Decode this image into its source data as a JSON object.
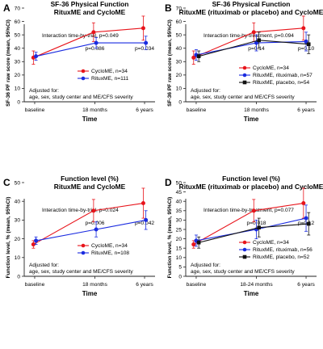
{
  "chart_data": [
    {
      "label": "A",
      "type": "line",
      "title": "SF-36 Physical Function",
      "subtitle": "RituxME and CycloME",
      "ylabel": "SF-36 PF raw score (mean, 95%CI)",
      "xlabel": "Time",
      "categories": [
        "baseline",
        "18 months",
        "6 years"
      ],
      "ylim": [
        0,
        70
      ],
      "yticks": [
        0,
        10,
        20,
        30,
        40,
        50,
        60,
        70
      ],
      "interaction": "Interaction time-by-trial, p=0.049",
      "pvalues": [
        "",
        "p=0.086",
        "p=0.034"
      ],
      "adjusted": [
        "Adjusted for:",
        "age, sex, study center and ME/CFS severity"
      ],
      "series": [
        {
          "name": "CycloME, n=34",
          "color": "#e8141b",
          "marker": "circle",
          "values": [
            33,
            52,
            55
          ],
          "lo": [
            28,
            45,
            46
          ],
          "hi": [
            38,
            59,
            64
          ]
        },
        {
          "name": "RituxME, n=111",
          "color": "#1a2be0",
          "marker": "circle",
          "values": [
            34,
            44,
            44
          ],
          "lo": [
            31,
            40,
            39
          ],
          "hi": [
            37,
            48,
            49
          ]
        }
      ]
    },
    {
      "label": "B",
      "type": "line",
      "title": "SF-36 Physical Function",
      "subtitle": "RituxME (rituximab or placebo) and CycloME",
      "ylabel": "SF-36 PF raw score (mean, 95%CI)",
      "xlabel": "Time",
      "categories": [
        "baseline",
        "18 months",
        "6 years"
      ],
      "ylim": [
        0,
        70
      ],
      "yticks": [
        0,
        10,
        20,
        30,
        40,
        50,
        60,
        70
      ],
      "interaction": "Interaction time-by-treatment, p=0.094",
      "pvalues": [
        "",
        "p=0.14",
        "p=0.10"
      ],
      "adjusted": [
        "Adjusted for:",
        "age, sex, study center and ME/CFS severity"
      ],
      "series": [
        {
          "name": "CycloME, n=34",
          "color": "#e8141b",
          "marker": "circle",
          "values": [
            33,
            52,
            55
          ],
          "lo": [
            28,
            45,
            46
          ],
          "hi": [
            38,
            59,
            64
          ]
        },
        {
          "name": "RituxME, rituximab, n=57",
          "color": "#1a2be0",
          "marker": "circle",
          "values": [
            35,
            44,
            45
          ],
          "lo": [
            31,
            38,
            38
          ],
          "hi": [
            39,
            50,
            52
          ]
        },
        {
          "name": "RituxME, placebo, n=54",
          "color": "#111111",
          "marker": "square",
          "values": [
            34,
            46,
            43
          ],
          "lo": [
            30,
            40,
            36
          ],
          "hi": [
            38,
            52,
            50
          ]
        }
      ]
    },
    {
      "label": "C",
      "type": "line",
      "title": "Function level (%)",
      "subtitle": "RituxME and CycloME",
      "ylabel": "Function level, % (mean, 95%CI)",
      "xlabel": "Time",
      "categories": [
        "baseline",
        "18 months",
        "6 years"
      ],
      "ylim": [
        0,
        50
      ],
      "yticks": [
        0,
        10,
        20,
        30,
        40,
        50
      ],
      "interaction": "Interaction time-by-trial, p=0.024",
      "pvalues": [
        "",
        "p=0.006",
        "p=0.042"
      ],
      "adjusted": [
        "Adjusted for:",
        "age, sex, study center and ME/CFS severity"
      ],
      "series": [
        {
          "name": "CycloME, n=34",
          "color": "#e8141b",
          "marker": "circle",
          "values": [
            17,
            35,
            39
          ],
          "lo": [
            15,
            29,
            31
          ],
          "hi": [
            19,
            41,
            47
          ]
        },
        {
          "name": "RituxME, n=108",
          "color": "#1a2be0",
          "marker": "circle",
          "values": [
            19,
            25,
            30
          ],
          "lo": [
            17,
            21,
            25
          ],
          "hi": [
            21,
            29,
            35
          ]
        }
      ]
    },
    {
      "label": "D",
      "type": "line",
      "title": "Function level (%)",
      "subtitle": "RituxME (rituximab or placebo) and CycloME",
      "ylabel": "Function level, % (mean, 95%CI)",
      "xlabel": "Time",
      "categories": [
        "baseline",
        "18-24 months",
        "6 years"
      ],
      "ylim": [
        0,
        50
      ],
      "yticks": [
        0,
        5,
        10,
        15,
        20,
        25,
        30,
        35,
        40,
        45,
        50
      ],
      "interaction": "Interaction time-by-treatment, p=0.077",
      "pvalues": [
        "",
        "p=0.018",
        "p=0.12"
      ],
      "adjusted": [
        "Adjusted for:",
        "age, sex, study center and ME/CFS severity"
      ],
      "series": [
        {
          "name": "CycloME, n=34",
          "color": "#e8141b",
          "marker": "circle",
          "values": [
            17,
            35,
            39
          ],
          "lo": [
            15,
            29,
            31
          ],
          "hi": [
            19,
            41,
            47
          ]
        },
        {
          "name": "RituxME, rituximab, n=56",
          "color": "#1a2be0",
          "marker": "circle",
          "values": [
            19,
            25,
            31
          ],
          "lo": [
            16,
            20,
            24
          ],
          "hi": [
            22,
            30,
            38
          ]
        },
        {
          "name": "RituxME, placebo, n=52",
          "color": "#111111",
          "marker": "square",
          "values": [
            18,
            26,
            28
          ],
          "lo": [
            15,
            21,
            22
          ],
          "hi": [
            21,
            31,
            34
          ]
        }
      ]
    }
  ]
}
